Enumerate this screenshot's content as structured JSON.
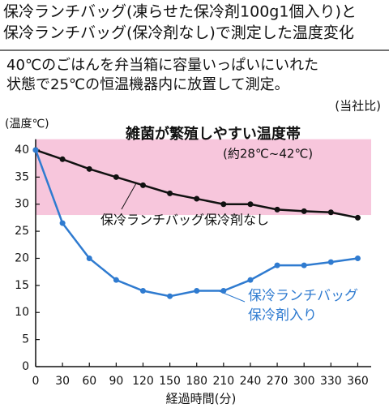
{
  "chart_data": {
    "type": "line",
    "title": [
      "保冷ランチバッグ(凍らせた保冷剤100g1個入り)と",
      "保冷ランチバッグ(保冷剤なし)で測定した温度変化"
    ],
    "subtitle": [
      "40℃のごはんを弁当箱に容量いっぱいにいれた",
      "状態で25℃の恒温機器内に放置して測定。"
    ],
    "source": "(当社比)",
    "y_label": "(温度℃)",
    "x_label": "経過時間(分)",
    "x": [
      0,
      30,
      60,
      90,
      120,
      150,
      180,
      210,
      240,
      270,
      300,
      330,
      360
    ],
    "xlim": [
      0,
      375
    ],
    "xticks": [
      0,
      30,
      60,
      90,
      120,
      150,
      180,
      210,
      240,
      270,
      300,
      330,
      360
    ],
    "ylim": [
      0,
      42
    ],
    "yticks": [
      0,
      5,
      10,
      15,
      20,
      25,
      30,
      35,
      40
    ],
    "band": {
      "range": [
        28,
        42
      ],
      "color": "#f7c6dc",
      "label": "雑菌が繁殖しやすい温度帯",
      "sublabel": "(約28℃~42℃)"
    },
    "series": [
      {
        "name": "保冷ランチバッグ保冷剤なし",
        "color": "#111111",
        "values": [
          40,
          38.3,
          36.5,
          35,
          33.5,
          32,
          31,
          30,
          30,
          29,
          28.7,
          28.5,
          27.5
        ]
      },
      {
        "name": [
          "保冷ランチバッグ",
          "保冷剤入り"
        ],
        "color": "#2f7bd0",
        "values": [
          40,
          26.5,
          20,
          16,
          14,
          13,
          14,
          14,
          16,
          18.7,
          18.7,
          19.3,
          20
        ]
      }
    ]
  }
}
